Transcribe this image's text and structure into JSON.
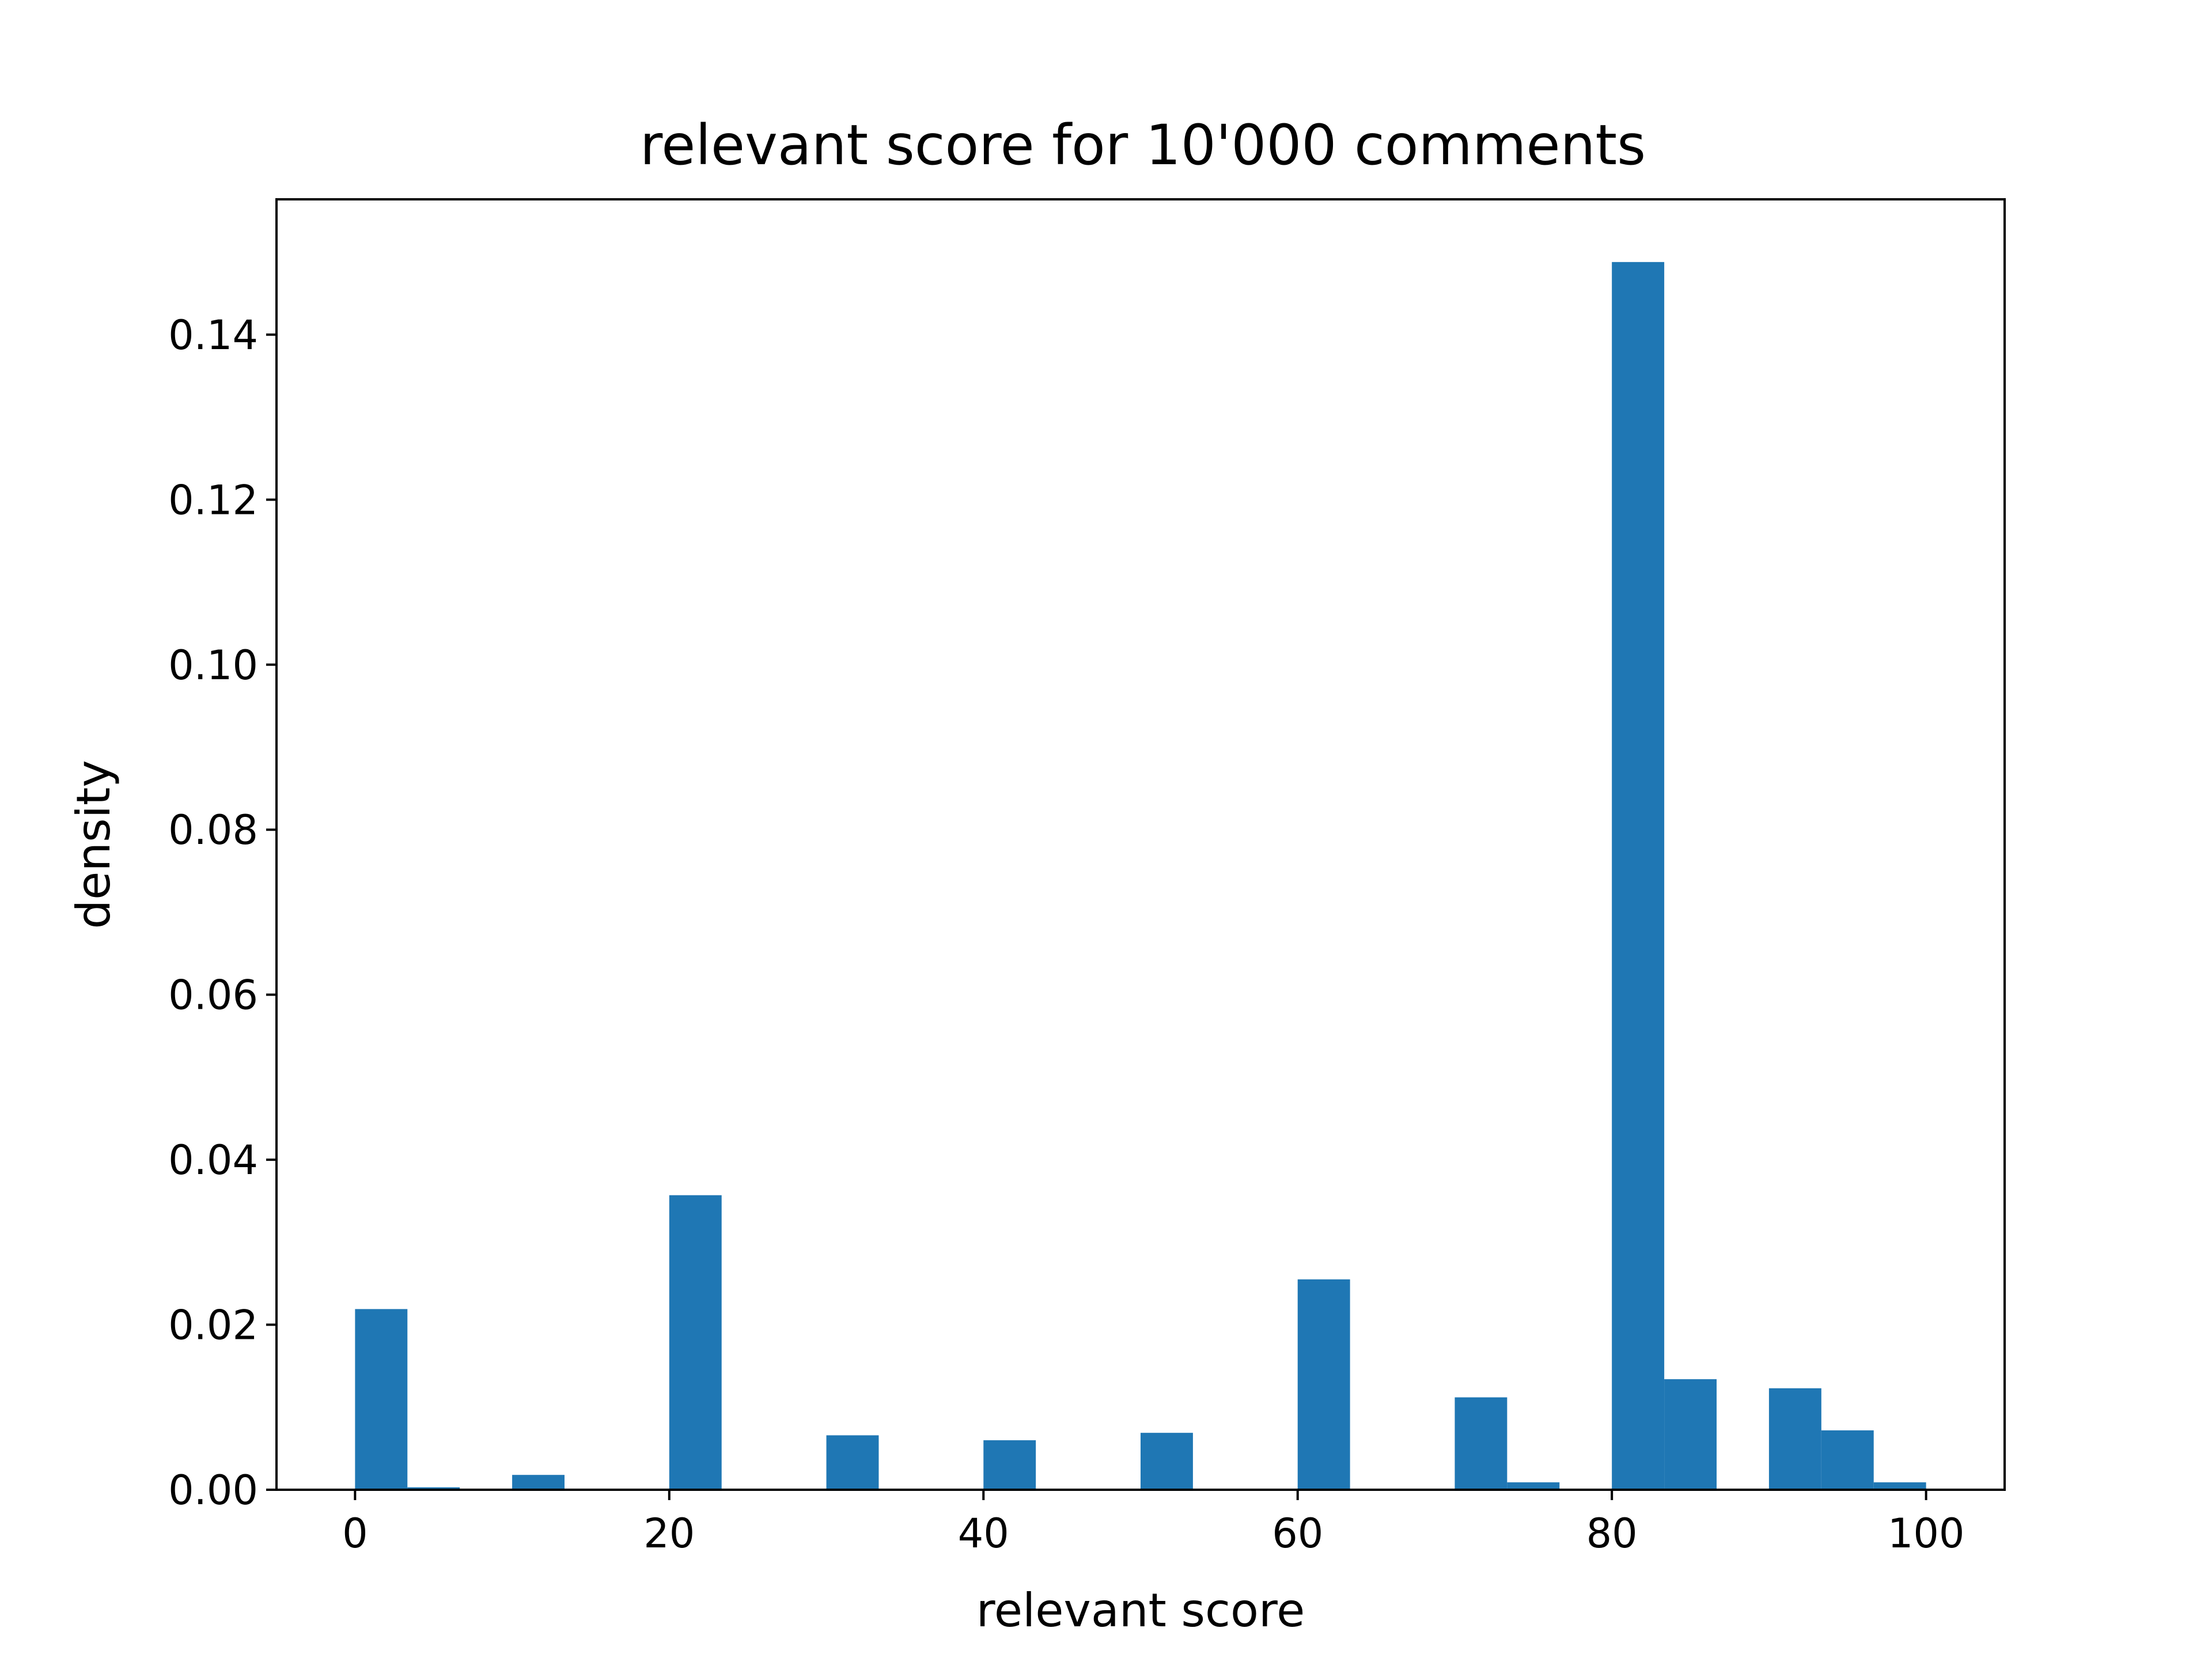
{
  "chart_data": {
    "type": "bar",
    "title": "relevant score for 10'000 comments",
    "xlabel": "relevant score",
    "ylabel": "density",
    "xlim": [
      -5,
      105
    ],
    "ylim": [
      0,
      0.1564
    ],
    "x_ticks": [
      0,
      20,
      40,
      60,
      80,
      100
    ],
    "y_ticks": [
      0.0,
      0.02,
      0.04,
      0.06,
      0.08,
      0.1,
      0.12,
      0.14
    ],
    "x_tick_labels": [
      "0",
      "20",
      "40",
      "60",
      "80",
      "100"
    ],
    "y_tick_labels": [
      "0.00",
      "0.02",
      "0.04",
      "0.06",
      "0.08",
      "0.10",
      "0.12",
      "0.14"
    ],
    "bin_width": 3.3333,
    "bin_edges": [
      0,
      3.3333,
      6.6667,
      10,
      13.3333,
      16.6667,
      20,
      23.3333,
      26.6667,
      30,
      33.3333,
      36.6667,
      40,
      43.3333,
      46.6667,
      50,
      53.3333,
      56.6667,
      60,
      63.3333,
      66.6667,
      70,
      73.3333,
      76.6667,
      80,
      83.3333,
      86.6667,
      90,
      93.3333,
      96.6667,
      100
    ],
    "values": [
      0.0219,
      0.0003,
      0,
      0.0018,
      0,
      0,
      0.0357,
      0,
      0,
      0.0066,
      0,
      0,
      0.006,
      0,
      0,
      0.0069,
      0,
      0,
      0.0255,
      0,
      0,
      0.0112,
      0.0009,
      0,
      0.1488,
      0.0134,
      0,
      0.0123,
      0.0072,
      0.0009
    ],
    "bar_color": "#1f77b4",
    "grid": false,
    "legend": false
  }
}
